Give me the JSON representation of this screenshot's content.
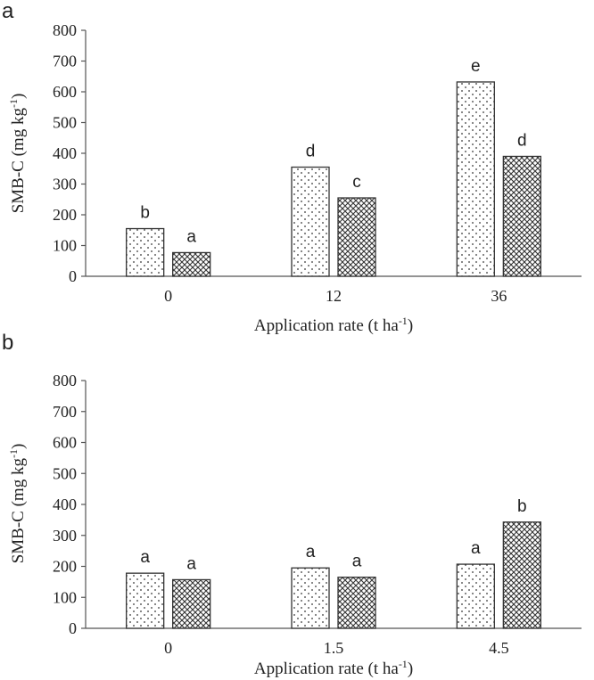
{
  "chart_data": [
    {
      "type": "bar",
      "panel": "a",
      "categories": [
        "0",
        "12",
        "36"
      ],
      "series": [
        {
          "pattern": "dots",
          "values": [
            155,
            355,
            632
          ]
        },
        {
          "pattern": "crosshatch",
          "values": [
            77,
            255,
            390
          ]
        }
      ],
      "significance": [
        [
          "b",
          "a"
        ],
        [
          "d",
          "c"
        ],
        [
          "e",
          "d"
        ]
      ],
      "ylabel": {
        "main": "SMB-C (mg kg",
        "sup": "-1",
        "end": ")"
      },
      "xlabel": {
        "main": "Application rate (t ha",
        "sup": "-1",
        "end": ")"
      },
      "ylim": [
        0,
        800
      ],
      "yticks": [
        "0",
        "100",
        "200",
        "300",
        "400",
        "500",
        "600",
        "700",
        "800"
      ],
      "grid": false
    },
    {
      "type": "bar",
      "panel": "b",
      "categories": [
        "0",
        "1.5",
        "4.5"
      ],
      "series": [
        {
          "pattern": "dots",
          "values": [
            178,
            195,
            207
          ]
        },
        {
          "pattern": "crosshatch",
          "values": [
            157,
            165,
            343
          ]
        }
      ],
      "significance": [
        [
          "a",
          "a"
        ],
        [
          "a",
          "a"
        ],
        [
          "a",
          "b"
        ]
      ],
      "ylabel": {
        "main": "SMB-C (mg kg",
        "sup": "-1",
        "end": ")"
      },
      "xlabel": {
        "main": "Application rate (t  ha",
        "sup": "-1",
        "end": ")"
      },
      "ylim": [
        0,
        800
      ],
      "yticks": [
        "0",
        "100",
        "200",
        "300",
        "400",
        "500",
        "600",
        "700",
        "800"
      ],
      "grid": false
    }
  ]
}
